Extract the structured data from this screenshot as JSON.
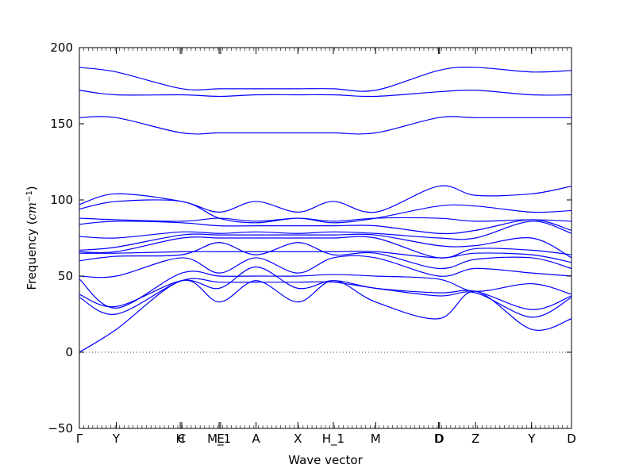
{
  "chart_data": {
    "type": "line",
    "title": "",
    "xlabel": "Wave vector",
    "ylabel": "Frequency",
    "ylabel_unit_base": "cm",
    "ylabel_unit_exp": "−1",
    "ylim": [
      -50,
      200
    ],
    "xlim": [
      0,
      1
    ],
    "yticks": [
      -50,
      0,
      50,
      100,
      150,
      200
    ],
    "ytick_labels": [
      "−50",
      "0",
      "50",
      "100",
      "150",
      "200"
    ],
    "xticks": [
      {
        "x": 0.0,
        "label": "Γ"
      },
      {
        "x": 0.075,
        "label": "Y"
      },
      {
        "x": 0.205,
        "label": "H"
      },
      {
        "x": 0.208,
        "label": "C"
      },
      {
        "x": 0.284,
        "label": "M_1"
      },
      {
        "x": 0.287,
        "label": "E"
      },
      {
        "x": 0.359,
        "label": "A"
      },
      {
        "x": 0.444,
        "label": "X"
      },
      {
        "x": 0.516,
        "label": "H_1"
      },
      {
        "x": 0.602,
        "label": "M"
      },
      {
        "x": 0.73,
        "label": "D"
      },
      {
        "x": 0.732,
        "label": "D"
      },
      {
        "x": 0.805,
        "label": "Z"
      },
      {
        "x": 0.919,
        "label": "Y"
      },
      {
        "x": 1.0,
        "label": "D"
      }
    ],
    "zero_line": true,
    "line_color": "#0000ff",
    "series_x": [
      0,
      0.075,
      0.208,
      0.284,
      0.359,
      0.444,
      0.516,
      0.602,
      0.73,
      0.805,
      0.919,
      1.0
    ],
    "series": [
      {
        "values": [
          187,
          184,
          173,
          173,
          173,
          173,
          173,
          172,
          185,
          187,
          184,
          185
        ]
      },
      {
        "values": [
          172,
          169,
          169,
          168,
          169,
          169,
          169,
          168,
          171,
          172,
          169,
          169
        ]
      },
      {
        "values": [
          154,
          154,
          144,
          144,
          144,
          144,
          144,
          144,
          154,
          154,
          154,
          154
        ]
      },
      {
        "values": [
          97,
          104,
          99,
          92,
          99,
          92,
          99,
          92,
          109,
          103,
          104,
          109
        ]
      },
      {
        "values": [
          94,
          99,
          99,
          88,
          85,
          88,
          85,
          88,
          96,
          96,
          92,
          93
        ]
      },
      {
        "values": [
          88,
          87,
          86,
          88,
          86,
          88,
          86,
          88,
          88,
          86,
          87,
          86
        ]
      },
      {
        "values": [
          84,
          86,
          85,
          83,
          83,
          83,
          83,
          83,
          78,
          80,
          87,
          80
        ]
      },
      {
        "values": [
          76,
          75,
          79,
          78,
          79,
          78,
          79,
          78,
          75,
          75,
          86,
          78
        ]
      },
      {
        "values": [
          67,
          69,
          77,
          77,
          77,
          77,
          77,
          77,
          70,
          70,
          75,
          62
        ]
      },
      {
        "values": [
          66,
          66,
          75,
          75,
          75,
          75,
          75,
          75,
          62,
          68,
          67,
          64
        ]
      },
      {
        "values": [
          65,
          65,
          66,
          66,
          66,
          66,
          66,
          66,
          62,
          65,
          64,
          59
        ]
      },
      {
        "values": [
          60,
          63,
          64,
          72,
          64,
          72,
          64,
          65,
          55,
          61,
          62,
          55
        ]
      },
      {
        "values": [
          50,
          50,
          62,
          52,
          62,
          52,
          62,
          62,
          50,
          55,
          52,
          50
        ]
      },
      {
        "values": [
          48,
          29,
          52,
          50,
          50,
          50,
          51,
          50,
          48,
          40,
          45,
          38
        ]
      },
      {
        "values": [
          38,
          30,
          47,
          42,
          56,
          42,
          47,
          42,
          39,
          40,
          28,
          37
        ]
      },
      {
        "values": [
          36,
          25,
          47,
          46,
          46,
          46,
          46,
          42,
          37,
          39,
          23,
          36
        ]
      },
      {
        "values": [
          0,
          15,
          47,
          33,
          47,
          33,
          47,
          33,
          22,
          40,
          15,
          22
        ]
      }
    ]
  }
}
